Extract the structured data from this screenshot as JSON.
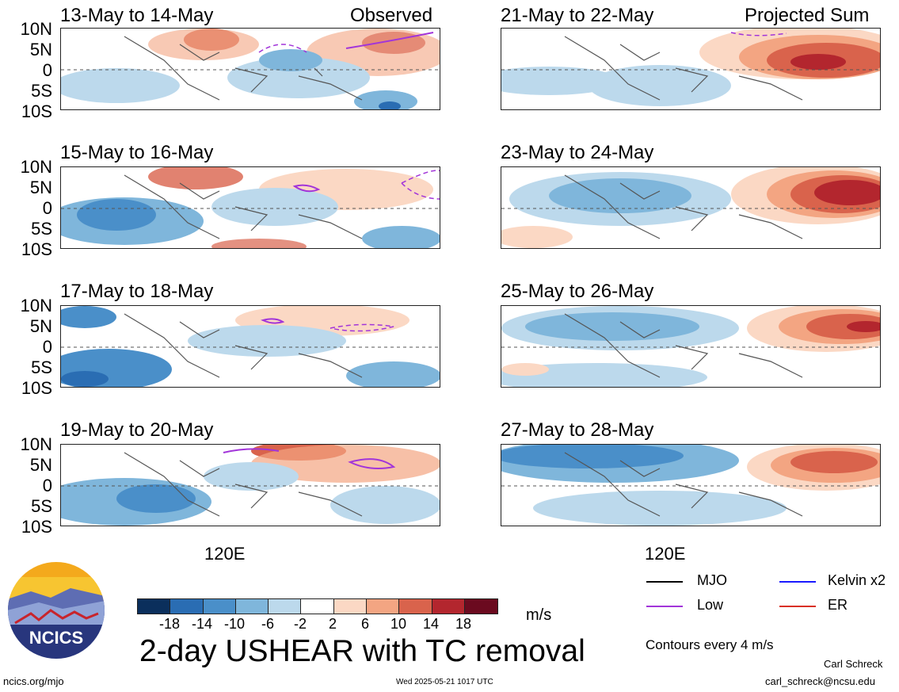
{
  "panels_left": {
    "title": "Observed",
    "dates": [
      "13-May to 14-May",
      "15-May to 16-May",
      "17-May to 18-May",
      "19-May to 20-May"
    ]
  },
  "panels_right": {
    "title": "Projected Sum",
    "dates": [
      "21-May to 22-May",
      "23-May to 24-May",
      "25-May to 26-May",
      "27-May to 28-May"
    ]
  },
  "lat_labels": [
    "10N",
    "5N",
    "0",
    "5S",
    "10S"
  ],
  "lon_label": "120E",
  "colorbar": {
    "ticks": [
      "-18",
      "-14",
      "-10",
      "-6",
      "-2",
      "2",
      "6",
      "10",
      "14",
      "18"
    ],
    "unit": "m/s",
    "colors": [
      "#0b2f5c",
      "#2a6db3",
      "#4a8fc9",
      "#7fb6db",
      "#bcd9ec",
      "#ffffff",
      "#fbd8c4",
      "#f3a582",
      "#d9634c",
      "#b3262e",
      "#6b0a1f"
    ]
  },
  "legend": {
    "mjo": "MJO",
    "kelvin": "Kelvin x2",
    "low": "Low",
    "er": "ER",
    "colors": {
      "mjo": "#000000",
      "kelvin": "#1a1aff",
      "low": "#a235d9",
      "er": "#d93026"
    }
  },
  "main_title": "2-day USHEAR with TC removal",
  "contours_note": "Contours every 4 m/s",
  "logo_text": "NCICS",
  "footer": {
    "url": "ncics.org/mjo",
    "timestamp": "Wed 2025-05-21 1017 UTC",
    "author": "Carl Schreck",
    "email": "carl_schreck@ncsu.edu"
  }
}
